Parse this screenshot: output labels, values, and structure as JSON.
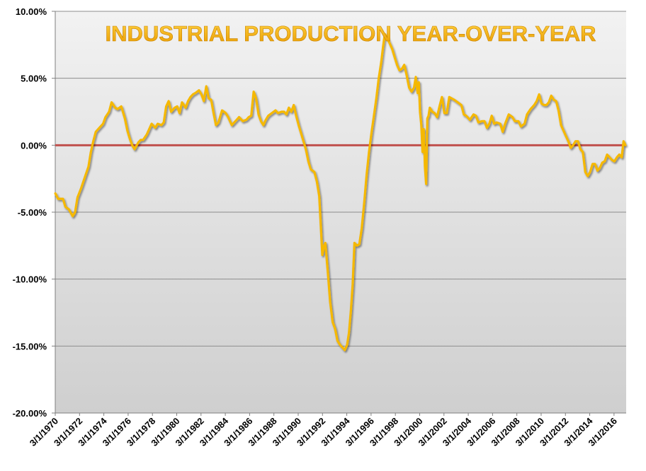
{
  "chart_data": {
    "type": "line",
    "title": "INDUSTRIAL PRODUCTION YEAR-OVER-YEAR",
    "xlabel": "",
    "ylabel": "",
    "x_range": [
      "3/1/1970",
      "3/1/2017"
    ],
    "ylim": [
      -20,
      10
    ],
    "y_ticks": [
      10,
      5,
      0,
      -5,
      -10,
      -15,
      -20
    ],
    "y_tick_labels": [
      "10.00%",
      "5.00%",
      "0.00%",
      "-5.00%",
      "-10.00%",
      "-15.00%",
      "-20.00%"
    ],
    "x_tick_labels": [
      "3/1/1970",
      "3/1/1972",
      "3/1/1974",
      "3/1/1976",
      "3/1/1978",
      "3/1/1980",
      "3/1/1982",
      "3/1/1984",
      "3/1/1986",
      "3/1/1988",
      "3/1/1990",
      "3/1/1992",
      "3/1/1994",
      "3/1/1996",
      "3/1/1998",
      "3/1/2000",
      "3/1/2002",
      "3/1/2004",
      "3/1/2006",
      "3/1/2008",
      "3/1/2010",
      "3/1/2012",
      "3/1/2014",
      "3/1/2016"
    ],
    "grid": true,
    "legend": "none",
    "reference_line": {
      "value": 0,
      "color": "#c0504d"
    },
    "series": [
      {
        "color": "#f5b800",
        "points": [
          [
            1970.17,
            -3.6
          ],
          [
            1970.4,
            -4.0
          ],
          [
            1970.8,
            -4.0
          ],
          [
            1971.0,
            -4.6
          ],
          [
            1971.3,
            -4.8
          ],
          [
            1971.6,
            -5.3
          ],
          [
            1971.8,
            -5.0
          ],
          [
            1972.0,
            -3.9
          ],
          [
            1972.3,
            -3.2
          ],
          [
            1972.6,
            -2.4
          ],
          [
            1972.9,
            -1.6
          ],
          [
            1973.1,
            -0.5
          ],
          [
            1973.3,
            0.3
          ],
          [
            1973.5,
            1.0
          ],
          [
            1973.8,
            1.3
          ],
          [
            1974.1,
            1.6
          ],
          [
            1974.3,
            2.1
          ],
          [
            1974.6,
            2.5
          ],
          [
            1974.8,
            3.2
          ],
          [
            1975.1,
            2.8
          ],
          [
            1975.3,
            2.7
          ],
          [
            1975.6,
            2.9
          ],
          [
            1975.9,
            2.0
          ],
          [
            1976.1,
            1.1
          ],
          [
            1976.3,
            0.5
          ],
          [
            1976.5,
            0.0
          ],
          [
            1976.7,
            -0.3
          ],
          [
            1977.0,
            0.2
          ],
          [
            1977.2,
            0.4
          ],
          [
            1977.4,
            0.4
          ],
          [
            1977.7,
            0.8
          ],
          [
            1977.9,
            1.2
          ],
          [
            1978.1,
            1.6
          ],
          [
            1978.4,
            1.3
          ],
          [
            1978.6,
            1.6
          ],
          [
            1978.9,
            1.5
          ],
          [
            1979.1,
            1.7
          ],
          [
            1979.3,
            2.9
          ],
          [
            1979.5,
            3.3
          ],
          [
            1979.7,
            2.5
          ],
          [
            1980.0,
            2.8
          ],
          [
            1980.2,
            2.9
          ],
          [
            1980.4,
            2.4
          ],
          [
            1980.6,
            3.2
          ],
          [
            1980.9,
            2.8
          ],
          [
            1981.1,
            3.3
          ],
          [
            1981.3,
            3.6
          ],
          [
            1981.5,
            3.8
          ],
          [
            1981.7,
            3.9
          ],
          [
            1982.0,
            4.1
          ],
          [
            1982.2,
            3.8
          ],
          [
            1982.4,
            3.3
          ],
          [
            1982.6,
            4.4
          ],
          [
            1982.8,
            3.5
          ],
          [
            1983.0,
            3.4
          ],
          [
            1983.2,
            2.4
          ],
          [
            1983.4,
            1.5
          ],
          [
            1983.6,
            1.7
          ],
          [
            1983.9,
            2.6
          ],
          [
            1984.2,
            2.4
          ],
          [
            1984.4,
            2.1
          ],
          [
            1984.7,
            1.5
          ],
          [
            1984.9,
            1.7
          ],
          [
            1985.1,
            1.9
          ],
          [
            1985.3,
            2.1
          ],
          [
            1985.6,
            1.8
          ],
          [
            1985.9,
            1.9
          ],
          [
            1986.1,
            2.1
          ],
          [
            1986.3,
            2.2
          ],
          [
            1986.5,
            4.0
          ],
          [
            1986.7,
            3.5
          ],
          [
            1986.9,
            2.3
          ],
          [
            1987.1,
            1.8
          ],
          [
            1987.3,
            1.5
          ],
          [
            1987.5,
            1.9
          ],
          [
            1987.7,
            2.2
          ],
          [
            1988.0,
            2.4
          ],
          [
            1988.3,
            2.6
          ],
          [
            1988.5,
            2.4
          ],
          [
            1988.8,
            2.5
          ],
          [
            1989.0,
            2.5
          ],
          [
            1989.2,
            2.3
          ],
          [
            1989.4,
            2.8
          ],
          [
            1989.6,
            2.5
          ],
          [
            1989.8,
            3.0
          ],
          [
            1990.0,
            2.2
          ],
          [
            1990.2,
            1.5
          ],
          [
            1990.4,
            0.9
          ],
          [
            1990.6,
            0.3
          ],
          [
            1990.8,
            -0.3
          ],
          [
            1991.0,
            -1.2
          ],
          [
            1991.2,
            -1.8
          ],
          [
            1991.5,
            -2.0
          ],
          [
            1991.7,
            -2.7
          ],
          [
            1991.9,
            -3.8
          ],
          [
            1992.0,
            -5.5
          ],
          [
            1992.15,
            -8.2
          ],
          [
            1992.3,
            -7.5
          ],
          [
            1992.4,
            -7.3
          ],
          [
            1992.6,
            -9.4
          ],
          [
            1992.8,
            -11.7
          ],
          [
            1993.0,
            -13.2
          ],
          [
            1993.2,
            -13.7
          ],
          [
            1993.4,
            -14.6
          ],
          [
            1993.6,
            -14.9
          ],
          [
            1993.8,
            -15.1
          ],
          [
            1994.0,
            -15.3
          ],
          [
            1994.2,
            -14.9
          ],
          [
            1994.35,
            -14.0
          ],
          [
            1994.5,
            -12.4
          ],
          [
            1994.65,
            -10.4
          ],
          [
            1994.8,
            -7.3
          ],
          [
            1995.0,
            -7.5
          ],
          [
            1995.2,
            -7.4
          ],
          [
            1995.4,
            -6.2
          ],
          [
            1995.6,
            -4.3
          ],
          [
            1995.8,
            -2.2
          ],
          [
            1996.0,
            -0.5
          ],
          [
            1996.2,
            0.9
          ],
          [
            1996.4,
            2.2
          ],
          [
            1996.6,
            3.5
          ],
          [
            1996.8,
            5.0
          ],
          [
            1997.0,
            6.2
          ],
          [
            1997.15,
            7.3
          ],
          [
            1997.3,
            8.3
          ],
          [
            1997.5,
            8.0
          ],
          [
            1997.7,
            7.6
          ],
          [
            1997.9,
            7.2
          ],
          [
            1998.1,
            6.6
          ],
          [
            1998.3,
            6.0
          ],
          [
            1998.5,
            5.6
          ],
          [
            1998.7,
            5.7
          ],
          [
            1998.9,
            6.0
          ],
          [
            1999.1,
            5.2
          ],
          [
            1999.3,
            4.3
          ],
          [
            1999.5,
            4.0
          ],
          [
            1999.7,
            4.3
          ],
          [
            1999.85,
            5.1
          ],
          [
            2000.0,
            3.9
          ],
          [
            2000.1,
            4.7
          ],
          [
            2000.2,
            2.5
          ],
          [
            2000.3,
            1.5
          ],
          [
            2000.4,
            -0.5
          ],
          [
            2000.5,
            1.2
          ],
          [
            2000.6,
            -1.6
          ],
          [
            2000.7,
            -2.9
          ],
          [
            2000.8,
            2.0
          ],
          [
            2000.9,
            2.2
          ],
          [
            2001.0,
            2.8
          ],
          [
            2001.2,
            2.5
          ],
          [
            2001.4,
            2.4
          ],
          [
            2001.6,
            2.1
          ],
          [
            2001.8,
            2.9
          ],
          [
            2002.0,
            3.6
          ],
          [
            2002.2,
            2.4
          ],
          [
            2002.4,
            2.4
          ],
          [
            2002.6,
            3.6
          ],
          [
            2002.8,
            3.5
          ],
          [
            2003.0,
            3.4
          ],
          [
            2003.3,
            3.2
          ],
          [
            2003.6,
            3.0
          ],
          [
            2003.8,
            2.3
          ],
          [
            2004.0,
            2.2
          ],
          [
            2004.3,
            1.9
          ],
          [
            2004.6,
            2.3
          ],
          [
            2004.8,
            2.2
          ],
          [
            2005.0,
            1.7
          ],
          [
            2005.3,
            1.8
          ],
          [
            2005.5,
            1.8
          ],
          [
            2005.7,
            1.3
          ],
          [
            2005.9,
            1.6
          ],
          [
            2006.1,
            2.2
          ],
          [
            2006.3,
            1.6
          ],
          [
            2006.5,
            1.7
          ],
          [
            2006.8,
            1.6
          ],
          [
            2007.0,
            1.0
          ],
          [
            2007.2,
            1.6
          ],
          [
            2007.5,
            2.3
          ],
          [
            2007.8,
            2.1
          ],
          [
            2008.0,
            1.8
          ],
          [
            2008.3,
            1.8
          ],
          [
            2008.5,
            1.4
          ],
          [
            2008.8,
            1.6
          ],
          [
            2009.0,
            2.3
          ],
          [
            2009.3,
            2.7
          ],
          [
            2009.6,
            3.0
          ],
          [
            2009.8,
            3.3
          ],
          [
            2010.0,
            3.8
          ],
          [
            2010.2,
            3.1
          ],
          [
            2010.4,
            3.0
          ],
          [
            2010.6,
            3.0
          ],
          [
            2010.8,
            3.2
          ],
          [
            2011.0,
            3.7
          ],
          [
            2011.2,
            3.4
          ],
          [
            2011.4,
            3.3
          ],
          [
            2011.6,
            2.6
          ],
          [
            2011.8,
            1.5
          ],
          [
            2012.0,
            1.1
          ],
          [
            2012.2,
            0.7
          ],
          [
            2012.4,
            0.3
          ],
          [
            2012.6,
            -0.2
          ],
          [
            2012.8,
            0.0
          ],
          [
            2013.0,
            0.3
          ],
          [
            2013.2,
            0.3
          ],
          [
            2013.4,
            -0.3
          ],
          [
            2013.6,
            -0.5
          ],
          [
            2013.8,
            -2.0
          ],
          [
            2014.0,
            -2.3
          ],
          [
            2014.2,
            -2.0
          ],
          [
            2014.4,
            -1.4
          ],
          [
            2014.6,
            -1.4
          ],
          [
            2014.8,
            -1.9
          ],
          [
            2015.0,
            -1.7
          ],
          [
            2015.2,
            -1.3
          ],
          [
            2015.4,
            -1.2
          ],
          [
            2015.6,
            -0.7
          ],
          [
            2015.8,
            -0.9
          ],
          [
            2016.0,
            -1.1
          ],
          [
            2016.2,
            -1.2
          ],
          [
            2016.4,
            -0.9
          ],
          [
            2016.6,
            -0.7
          ],
          [
            2016.8,
            -0.9
          ],
          [
            2016.95,
            0.3
          ],
          [
            2017.1,
            0.0
          ]
        ]
      }
    ]
  }
}
